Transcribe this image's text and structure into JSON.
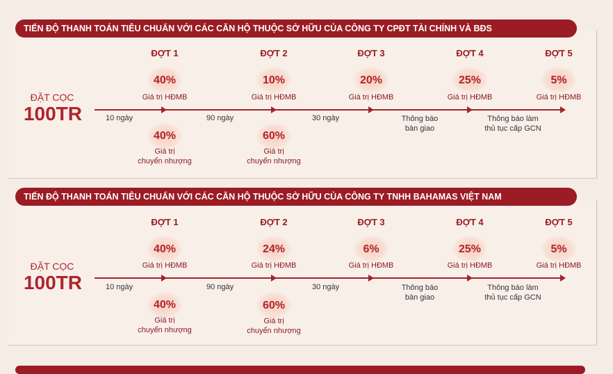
{
  "sections": [
    {
      "banner": "TIẾN ĐỘ THANH TOÁN TIÊU CHUẨN VỚI CÁC CĂN HỘ THUỘC SỞ HỮU CỦA CÔNG TY CPĐT TÀI CHÍNH VÀ BĐS",
      "deposit_label": "ĐẶT CỌC",
      "deposit_amount": "100TR",
      "stages": [
        {
          "label": "ĐỢT 1",
          "pct": "40%",
          "desc": "Giá trị HĐMB",
          "below_pct": "40%",
          "below_desc1": "Giá trị",
          "below_desc2": "chuyển nhượng"
        },
        {
          "label": "ĐỢT 2",
          "pct": "10%",
          "desc": "Giá trị HĐMB",
          "below_pct": "60%",
          "below_desc1": "Giá trị",
          "below_desc2": "chuyển nhượng"
        },
        {
          "label": "ĐỢT 3",
          "pct": "20%",
          "desc": "Giá trị HĐMB"
        },
        {
          "label": "ĐỢT 4",
          "pct": "25%",
          "desc": "Giá trị HĐMB"
        },
        {
          "label": "ĐỢT 5",
          "pct": "5%",
          "desc": "Giá trị HĐMB"
        }
      ],
      "intervals": [
        "10 ngày",
        "90 ngày",
        "30 ngày"
      ],
      "notes": [
        {
          "line1": "Thông báo",
          "line2": "bàn giao"
        },
        {
          "line1": "Thông báo làm",
          "line2": "thủ tục cấp GCN"
        }
      ]
    },
    {
      "banner": "TIẾN ĐỘ THANH TOÁN TIÊU CHUẨN VỚI CÁC CĂN HỘ THUỘC SỞ HỮU CỦA CÔNG TY TNHH BAHAMAS VIỆT NAM",
      "deposit_label": "ĐẶT CỌC",
      "deposit_amount": "100TR",
      "stages": [
        {
          "label": "ĐỢT 1",
          "pct": "40%",
          "desc": "Giá trị HĐMB",
          "below_pct": "40%",
          "below_desc1": "Giá trị",
          "below_desc2": "chuyển nhượng"
        },
        {
          "label": "ĐỢT 2",
          "pct": "24%",
          "desc": "Giá trị HĐMB",
          "below_pct": "60%",
          "below_desc1": "Giá trị",
          "below_desc2": "chuyển nhượng"
        },
        {
          "label": "ĐỢT 3",
          "pct": "6%",
          "desc": "Giá trị HĐMB"
        },
        {
          "label": "ĐỢT 4",
          "pct": "25%",
          "desc": "Giá trị HĐMB"
        },
        {
          "label": "ĐỢT 5",
          "pct": "5%",
          "desc": "Giá trị HĐMB"
        }
      ],
      "intervals": [
        "10 ngày",
        "90 ngày",
        "30 ngày"
      ],
      "notes": [
        {
          "line1": "Thông báo",
          "line2": "bàn giao"
        },
        {
          "line1": "Thông báo làm",
          "line2": "thủ tục cấp GCN"
        }
      ]
    }
  ]
}
